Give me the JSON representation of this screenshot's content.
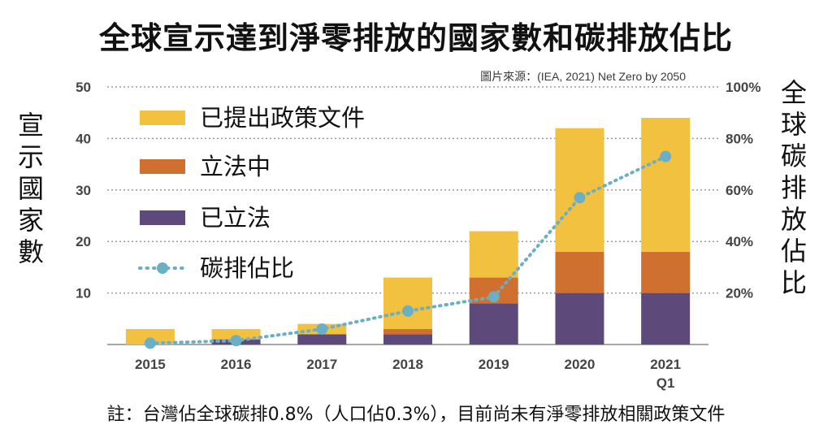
{
  "title": "全球宣示達到淨零排放的國家數和碳排放佔比",
  "source": "圖片來源：(IEA, 2021) Net Zero by 2050",
  "left_axis_label": [
    "宣",
    "示",
    "國",
    "家",
    "數"
  ],
  "right_axis_label": [
    "全",
    "球",
    "碳",
    "排",
    "放",
    "佔",
    "比"
  ],
  "footnote": "註：台灣佔全球碳排0.8%（人口佔0.3%），目前尚未有淨零排放相關政策文件",
  "colors": {
    "proposed": "#F2C140",
    "legislating": "#D07030",
    "legislated": "#5E4A7A",
    "share": "#6BAFC6"
  },
  "chart_data": {
    "type": "bar",
    "stacked": true,
    "categories": [
      "2015",
      "2016",
      "2017",
      "2018",
      "2019",
      "2020",
      "2021\nQ1"
    ],
    "category_labels": [
      [
        "2015"
      ],
      [
        "2016"
      ],
      [
        "2017"
      ],
      [
        "2018"
      ],
      [
        "2019"
      ],
      [
        "2020"
      ],
      [
        "2021",
        "Q1"
      ]
    ],
    "series": [
      {
        "name": "已立法",
        "key": "legislated",
        "values": [
          0,
          1,
          2,
          2,
          8,
          10,
          10
        ]
      },
      {
        "name": "立法中",
        "key": "legislating",
        "values": [
          0,
          0,
          0,
          1,
          5,
          8,
          8
        ]
      },
      {
        "name": "已提出政策文件",
        "key": "proposed",
        "values": [
          3,
          2,
          2,
          10,
          9,
          24,
          26
        ]
      }
    ],
    "line_series": {
      "name": "碳排佔比",
      "axis": "right",
      "values": [
        0.5,
        1.5,
        6,
        13,
        18.5,
        57,
        73
      ]
    },
    "legend": [
      "已提出政策文件",
      "立法中",
      "已立法",
      "碳排佔比"
    ],
    "legend_position": "top-left",
    "ylim": [
      0,
      50
    ],
    "yticks": [
      10,
      20,
      30,
      40,
      50
    ],
    "y2lim": [
      0,
      100
    ],
    "y2ticks": [
      "20%",
      "40%",
      "60%",
      "80%",
      "100%"
    ],
    "grid": true
  }
}
